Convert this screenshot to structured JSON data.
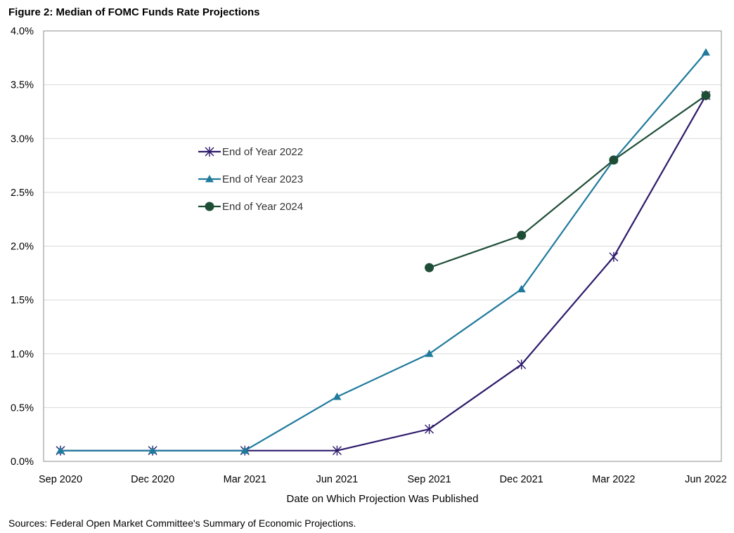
{
  "title": "Figure 2: Median of FOMC Funds Rate Projections",
  "source": "Sources: Federal Open Market Committee's Summary of Economic Projections.",
  "chart_data": {
    "type": "line",
    "title": "Figure 2: Median of FOMC Funds Rate Projections",
    "xlabel": "Date on Which Projection Was Published",
    "ylabel": "",
    "categories": [
      "Sep 2020",
      "Dec 2020",
      "Mar 2021",
      "Jun 2021",
      "Sep 2021",
      "Dec 2021",
      "Mar 2022",
      "Jun 2022"
    ],
    "ylim": [
      0,
      4.0
    ],
    "yticks": [
      0,
      0.5,
      1.0,
      1.5,
      2.0,
      2.5,
      3.0,
      3.5,
      4.0
    ],
    "ytick_labels": [
      "0.0%",
      "0.5%",
      "1.0%",
      "1.5%",
      "2.0%",
      "2.5%",
      "3.0%",
      "3.5%",
      "4.0%"
    ],
    "grid": "horizontal",
    "legend_position": "center-left",
    "series": [
      {
        "name": "End of Year 2022",
        "color": "#2e1a6b",
        "marker": "star",
        "values": [
          0.1,
          0.1,
          0.1,
          0.1,
          0.3,
          0.9,
          1.9,
          3.4
        ]
      },
      {
        "name": "End of Year 2023",
        "color": "#1f7a9c",
        "marker": "triangle",
        "values": [
          0.1,
          0.1,
          0.1,
          0.6,
          1.0,
          1.6,
          2.8,
          3.8
        ]
      },
      {
        "name": "End of Year 2024",
        "color": "#1e4d36",
        "marker": "circle",
        "values": [
          null,
          null,
          null,
          null,
          1.8,
          2.1,
          2.8,
          3.4
        ]
      }
    ]
  }
}
